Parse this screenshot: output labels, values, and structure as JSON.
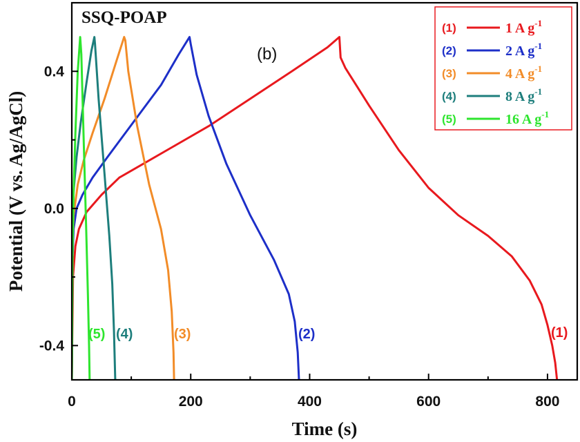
{
  "chart_data": {
    "type": "line",
    "title": "SSQ-POAP",
    "subtitle": "(b)",
    "xlabel": "Time (s)",
    "ylabel": "Potential (V vs. Ag/AgCl)",
    "xlim": [
      0,
      850
    ],
    "ylim": [
      -0.5,
      0.6
    ],
    "xticks": [
      0,
      200,
      400,
      600,
      800
    ],
    "yticks": [
      -0.4,
      0.0,
      0.4
    ],
    "ytick_labels": [
      "-0.4",
      "0.0",
      "0.4"
    ],
    "grid": false,
    "legend_position": "top-right",
    "series": [
      {
        "name": "(1)",
        "legend_label": "1 A g",
        "legend_sup": "-1",
        "curve_label": "(1)",
        "color": "#e8191e",
        "x": [
          0,
          2,
          6,
          12,
          25,
          50,
          80,
          120,
          170,
          230,
          300,
          370,
          430,
          450,
          452,
          460,
          500,
          550,
          600,
          650,
          700,
          740,
          770,
          790,
          800,
          808,
          813,
          816
        ],
        "y": [
          -0.5,
          -0.2,
          -0.11,
          -0.06,
          -0.01,
          0.04,
          0.09,
          0.13,
          0.18,
          0.24,
          0.32,
          0.4,
          0.47,
          0.5,
          0.44,
          0.41,
          0.3,
          0.17,
          0.06,
          -0.02,
          -0.08,
          -0.14,
          -0.21,
          -0.28,
          -0.34,
          -0.4,
          -0.45,
          -0.5
        ]
      },
      {
        "name": "(2)",
        "legend_label": "2 A g",
        "legend_sup": "-1",
        "curve_label": "(2)",
        "color": "#1d2fc8",
        "x": [
          0,
          1,
          3,
          8,
          18,
          35,
          60,
          90,
          120,
          150,
          180,
          198,
          200,
          210,
          230,
          260,
          300,
          340,
          365,
          375,
          380,
          382
        ],
        "y": [
          -0.5,
          -0.15,
          -0.06,
          0.0,
          0.04,
          0.09,
          0.15,
          0.22,
          0.29,
          0.36,
          0.45,
          0.5,
          0.48,
          0.39,
          0.27,
          0.13,
          -0.02,
          -0.15,
          -0.25,
          -0.33,
          -0.42,
          -0.5
        ]
      },
      {
        "name": "(3)",
        "legend_label": "4 A g",
        "legend_sup": "-1",
        "curve_label": "(3)",
        "color": "#f28c28",
        "x": [
          0,
          1,
          3,
          10,
          20,
          35,
          55,
          75,
          88,
          90,
          95,
          110,
          130,
          150,
          162,
          168,
          171,
          172
        ],
        "y": [
          -0.5,
          -0.1,
          -0.02,
          0.07,
          0.14,
          0.22,
          0.32,
          0.43,
          0.5,
          0.49,
          0.4,
          0.24,
          0.07,
          -0.06,
          -0.18,
          -0.3,
          -0.42,
          -0.5
        ]
      },
      {
        "name": "(4)",
        "legend_label": "8 A g",
        "legend_sup": "-1",
        "curve_label": "(4)",
        "color": "#1d7e7c",
        "x": [
          0,
          1,
          3,
          8,
          15,
          25,
          33,
          38,
          39,
          45,
          55,
          63,
          68,
          71,
          73
        ],
        "y": [
          -0.5,
          -0.05,
          0.05,
          0.15,
          0.25,
          0.37,
          0.46,
          0.5,
          0.48,
          0.32,
          0.1,
          -0.08,
          -0.22,
          -0.36,
          -0.5
        ]
      },
      {
        "name": "(5)",
        "legend_label": "16 A g",
        "legend_sup": "-1",
        "curve_label": "(5)",
        "color": "#2ee52e",
        "x": [
          0,
          1,
          3,
          6,
          10,
          14,
          16,
          20,
          24,
          27,
          29,
          30
        ],
        "y": [
          -0.5,
          -0.15,
          0.05,
          0.22,
          0.4,
          0.5,
          0.45,
          0.2,
          -0.05,
          -0.25,
          -0.4,
          -0.5
        ]
      }
    ]
  }
}
